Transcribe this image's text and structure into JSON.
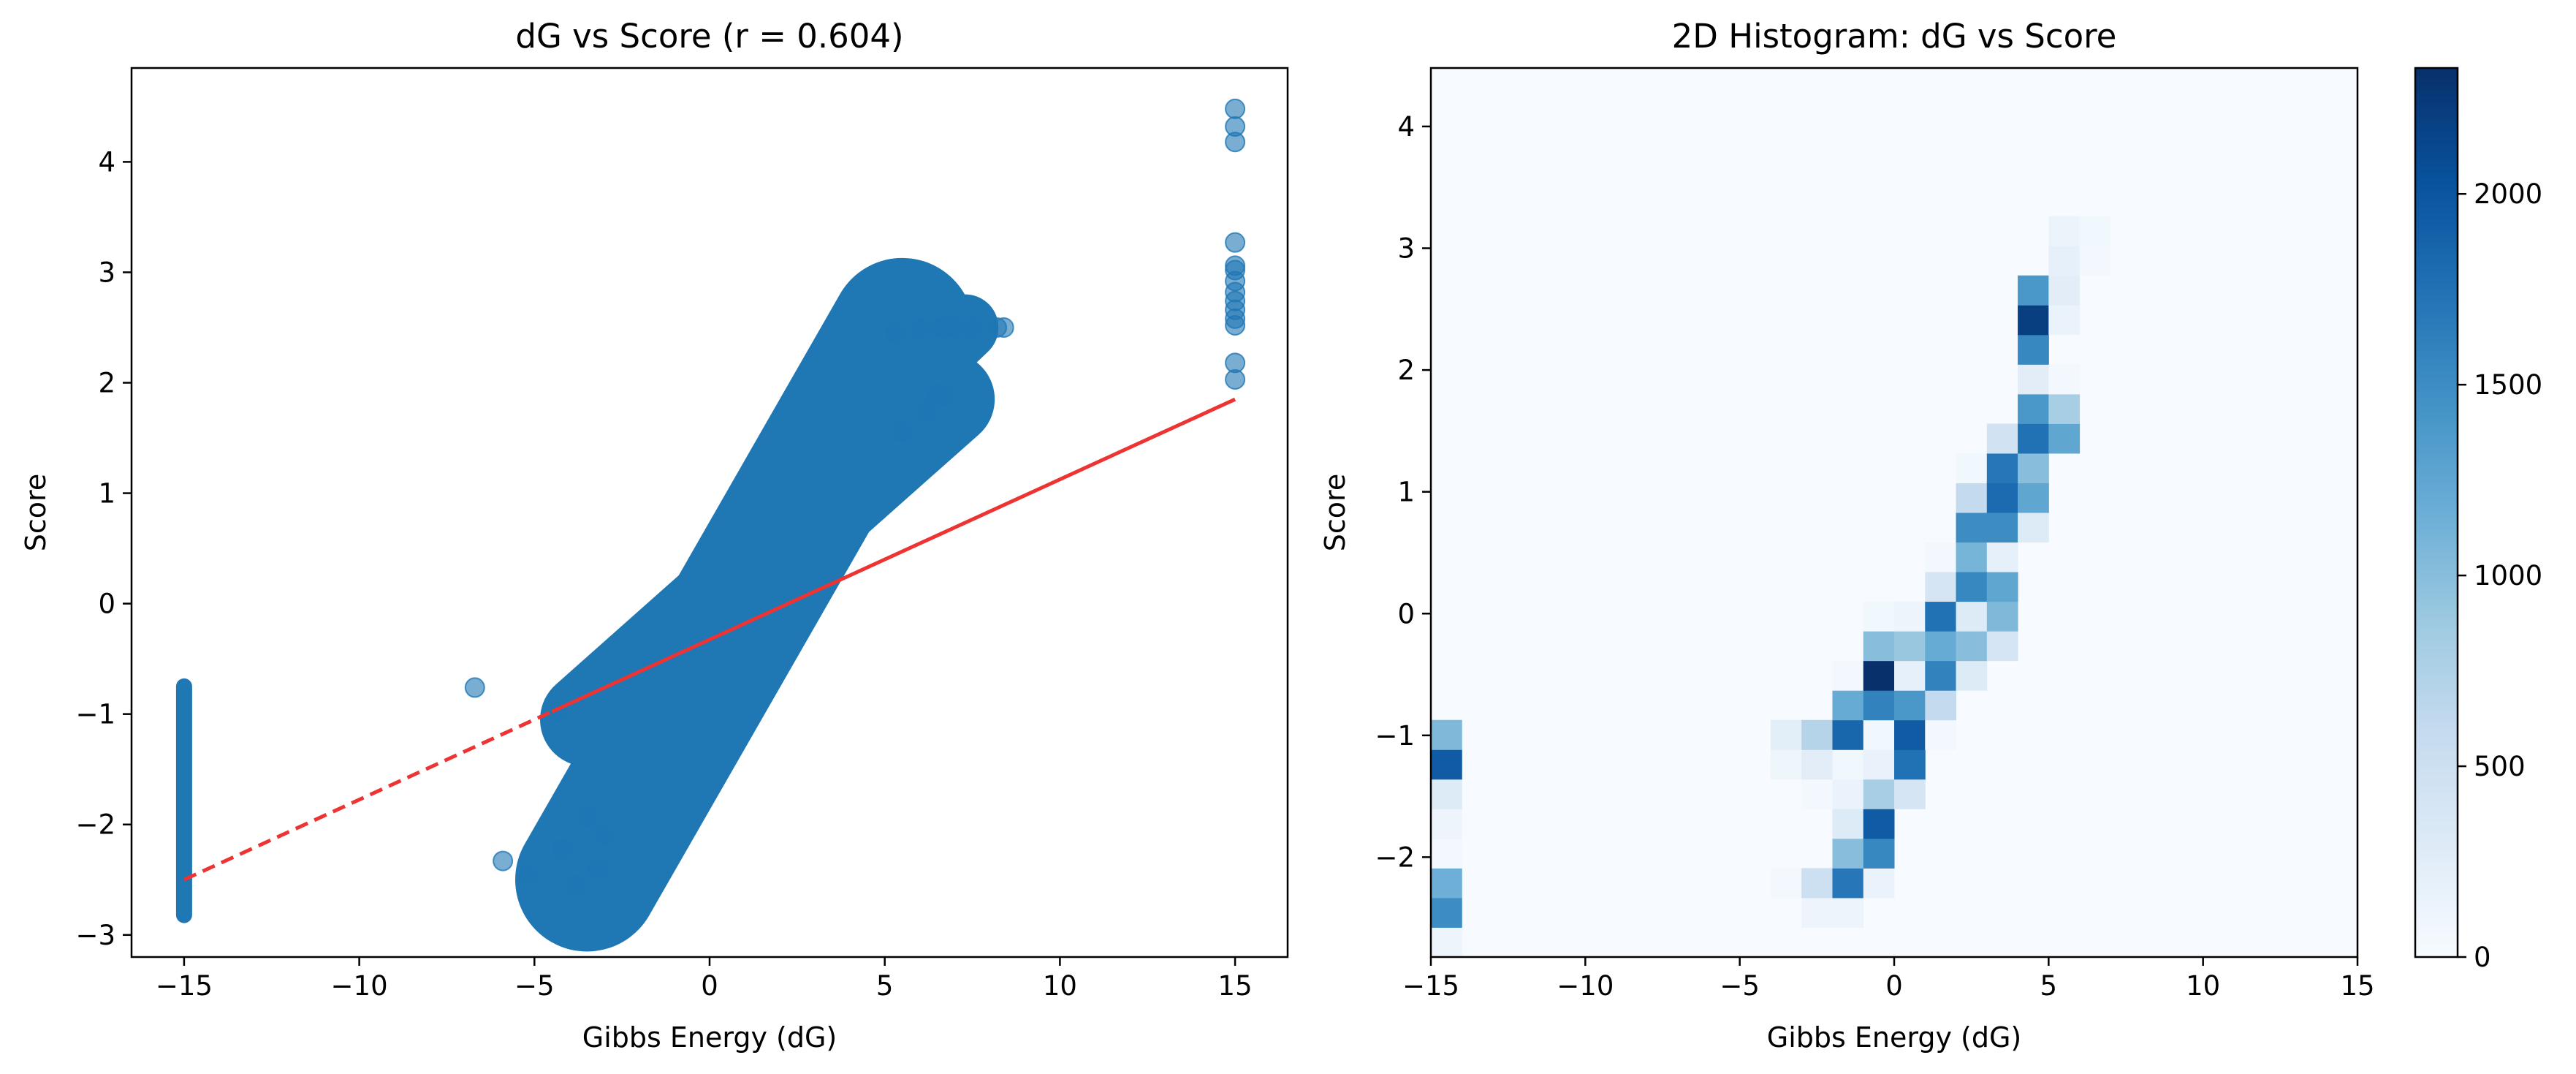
{
  "chart_data": [
    {
      "type": "scatter",
      "title": "dG vs Score (r = 0.604)",
      "xlabel": "Gibbs Energy (dG)",
      "ylabel": "Score",
      "xlim": [
        -16.5,
        16.5
      ],
      "ylim": [
        -3.2,
        4.85
      ],
      "xticks": [
        -15,
        -10,
        -5,
        0,
        5,
        10,
        15
      ],
      "xtick_labels": [
        "−15",
        "−10",
        "−5",
        "0",
        "5",
        "10",
        "15"
      ],
      "yticks": [
        -3,
        -2,
        -1,
        0,
        1,
        2,
        3,
        4
      ],
      "ytick_labels": [
        "−3",
        "−2",
        "−1",
        "0",
        "1",
        "2",
        "3",
        "4"
      ],
      "point_color": "#1f77b4",
      "point_alpha": 0.6,
      "grid": false,
      "dense_bands": [
        {
          "name": "low-dG-column",
          "x": -15,
          "y_range": [
            -2.82,
            -0.75
          ]
        },
        {
          "name": "main-lower",
          "from": [
            -3.5,
            -2.5
          ],
          "to": [
            5.5,
            2.48
          ],
          "width": 1.3
        },
        {
          "name": "main-upper",
          "from": [
            -3.5,
            -1.05
          ],
          "to": [
            6.8,
            1.85
          ],
          "width": 0.85
        },
        {
          "name": "upper-branch",
          "from": [
            1.0,
            0.6
          ],
          "to": [
            7.3,
            2.5
          ],
          "width": 0.6
        }
      ],
      "points": [
        {
          "x": 15,
          "y": 4.48
        },
        {
          "x": 15,
          "y": 4.32
        },
        {
          "x": 15,
          "y": 4.18
        },
        {
          "x": 15,
          "y": 3.27
        },
        {
          "x": 15,
          "y": 3.06
        },
        {
          "x": 15,
          "y": 3.02
        },
        {
          "x": 15,
          "y": 2.92
        },
        {
          "x": 15,
          "y": 2.82
        },
        {
          "x": 15,
          "y": 2.74
        },
        {
          "x": 15,
          "y": 2.66
        },
        {
          "x": 15,
          "y": 2.58
        },
        {
          "x": 15,
          "y": 2.52
        },
        {
          "x": 15,
          "y": 2.18
        },
        {
          "x": 15,
          "y": 2.03
        },
        {
          "x": -6.7,
          "y": -0.76
        },
        {
          "x": -5.9,
          "y": -2.33
        },
        {
          "x": -5.2,
          "y": -2.46
        },
        {
          "x": -4.3,
          "y": -0.98
        },
        {
          "x": -4.2,
          "y": -2.22
        },
        {
          "x": -3.8,
          "y": -2.55
        },
        {
          "x": -3.5,
          "y": -1.93
        },
        {
          "x": -3.2,
          "y": -2.4
        },
        {
          "x": -3.0,
          "y": -2.1
        },
        {
          "x": 5.3,
          "y": 2.45
        },
        {
          "x": 6.0,
          "y": 2.49
        },
        {
          "x": 6.6,
          "y": 2.5
        },
        {
          "x": 7.0,
          "y": 2.5
        },
        {
          "x": 7.5,
          "y": 2.5
        },
        {
          "x": 8.2,
          "y": 2.5
        },
        {
          "x": 8.4,
          "y": 2.5
        },
        {
          "x": 5.5,
          "y": 1.55
        },
        {
          "x": 6.2,
          "y": 1.75
        },
        {
          "x": 6.7,
          "y": 1.88
        },
        {
          "x": 6.5,
          "y": 1.9
        }
      ],
      "fit_line": {
        "color": "#ee3333",
        "from": [
          -15,
          -2.5
        ],
        "to": [
          15,
          1.85
        ],
        "dashed_until_x": -4.5
      }
    },
    {
      "type": "heatmap",
      "title": "2D Histogram: dG vs Score",
      "xlabel": "Gibbs Energy (dG)",
      "ylabel": "Score",
      "xlim": [
        -15,
        15
      ],
      "ylim": [
        -2.82,
        4.48
      ],
      "xticks": [
        -15,
        -10,
        -5,
        0,
        5,
        10,
        15
      ],
      "xtick_labels": [
        "−15",
        "−10",
        "−5",
        "0",
        "5",
        "10",
        "15"
      ],
      "yticks": [
        -2,
        -1,
        0,
        1,
        2,
        3,
        4
      ],
      "ytick_labels": [
        "−2",
        "−1",
        "0",
        "1",
        "2",
        "3",
        "4"
      ],
      "colormap": "Blues",
      "vmax": 2330,
      "colorbar_ticks": [
        0,
        500,
        1000,
        1500,
        2000
      ],
      "colorbar_labels": [
        "0",
        "500",
        "1000",
        "1500",
        "2000"
      ],
      "bins": {
        "x_edges": [
          -15,
          15
        ],
        "nx": 30,
        "y_edges": [
          -2.82,
          4.48
        ],
        "ny": 30
      },
      "cells": [
        [
          0,
          0,
          120
        ],
        [
          0,
          1,
          1500
        ],
        [
          0,
          2,
          1150
        ],
        [
          0,
          3,
          60
        ],
        [
          0,
          4,
          120
        ],
        [
          0,
          5,
          300
        ],
        [
          0,
          6,
          1950
        ],
        [
          0,
          7,
          1050
        ],
        [
          11,
          2,
          60
        ],
        [
          11,
          6,
          100
        ],
        [
          11,
          7,
          240
        ],
        [
          12,
          1,
          120
        ],
        [
          12,
          2,
          500
        ],
        [
          12,
          5,
          60
        ],
        [
          12,
          6,
          250
        ],
        [
          12,
          7,
          700
        ],
        [
          13,
          1,
          120
        ],
        [
          13,
          2,
          1700
        ],
        [
          13,
          3,
          1000
        ],
        [
          13,
          4,
          300
        ],
        [
          13,
          5,
          150
        ],
        [
          13,
          6,
          80
        ],
        [
          13,
          7,
          1850
        ],
        [
          13,
          8,
          1200
        ],
        [
          13,
          9,
          60
        ],
        [
          14,
          2,
          150
        ],
        [
          14,
          3,
          1550
        ],
        [
          14,
          4,
          1950
        ],
        [
          14,
          5,
          800
        ],
        [
          14,
          6,
          160
        ],
        [
          14,
          7,
          80
        ],
        [
          14,
          8,
          1600
        ],
        [
          14,
          9,
          2330
        ],
        [
          14,
          10,
          1000
        ],
        [
          14,
          11,
          80
        ],
        [
          15,
          5,
          400
        ],
        [
          15,
          6,
          1750
        ],
        [
          15,
          7,
          1950
        ],
        [
          15,
          8,
          1400
        ],
        [
          15,
          9,
          200
        ],
        [
          15,
          10,
          900
        ],
        [
          15,
          11,
          120
        ],
        [
          16,
          7,
          60
        ],
        [
          16,
          8,
          600
        ],
        [
          16,
          9,
          1600
        ],
        [
          16,
          10,
          1200
        ],
        [
          16,
          11,
          1750
        ],
        [
          16,
          12,
          400
        ],
        [
          16,
          13,
          60
        ],
        [
          17,
          9,
          300
        ],
        [
          17,
          10,
          1000
        ],
        [
          17,
          11,
          300
        ],
        [
          17,
          12,
          1550
        ],
        [
          17,
          13,
          1100
        ],
        [
          17,
          14,
          1500
        ],
        [
          17,
          15,
          600
        ],
        [
          17,
          16,
          80
        ],
        [
          18,
          10,
          400
        ],
        [
          18,
          11,
          1050
        ],
        [
          18,
          12,
          1250
        ],
        [
          18,
          13,
          200
        ],
        [
          18,
          14,
          1500
        ],
        [
          18,
          15,
          1800
        ],
        [
          18,
          16,
          1700
        ],
        [
          18,
          17,
          450
        ],
        [
          19,
          14,
          300
        ],
        [
          19,
          15,
          1250
        ],
        [
          19,
          16,
          1000
        ],
        [
          19,
          17,
          1750
        ],
        [
          19,
          18,
          1400
        ],
        [
          19,
          19,
          250
        ],
        [
          19,
          20,
          1550
        ],
        [
          19,
          21,
          2200
        ],
        [
          19,
          22,
          1400
        ],
        [
          20,
          17,
          1250
        ],
        [
          20,
          18,
          800
        ],
        [
          20,
          19,
          60
        ],
        [
          20,
          21,
          150
        ],
        [
          20,
          22,
          250
        ],
        [
          20,
          23,
          200
        ],
        [
          20,
          24,
          130
        ],
        [
          21,
          23,
          60
        ],
        [
          21,
          24,
          80
        ]
      ]
    }
  ]
}
